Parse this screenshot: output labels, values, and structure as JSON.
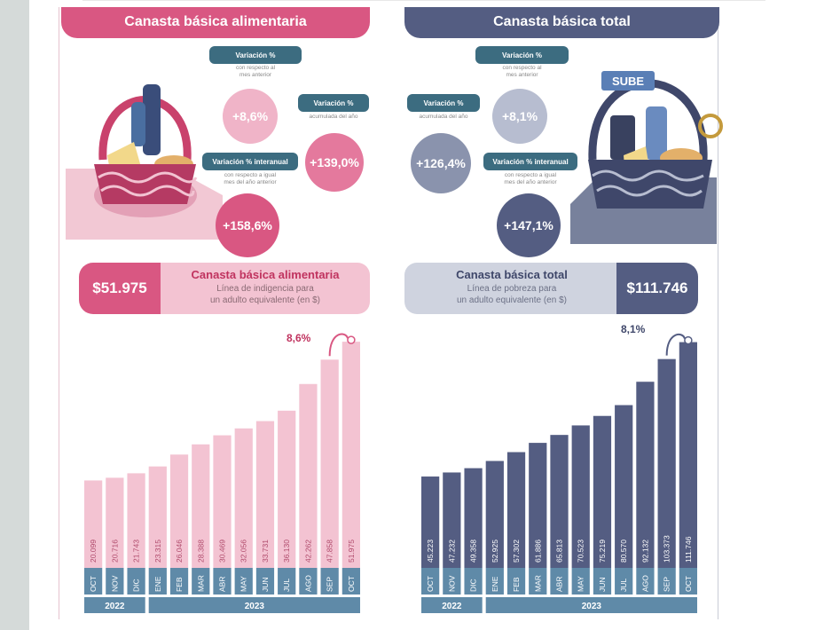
{
  "colors": {
    "pink_dark": "#d95782",
    "pink_mid": "#e47c9e",
    "pink_light": "#f3c3d2",
    "navy_dark": "#545d82",
    "navy_mid": "#68728f",
    "navy_light": "#cfd3df",
    "teal": "#3c6c80",
    "axis_blue": "#5f8aa8"
  },
  "left": {
    "header": "Canasta básica alimentaria",
    "var_mensual_title": "Variación %",
    "var_mensual_sub": "con respecto al\nmes anterior",
    "var_mensual_value": "+8,6%",
    "var_acum_title": "Variación %",
    "var_acum_sub": "acumulada del año",
    "var_acum_value": "+139,0%",
    "var_inter_title": "Variación % interanual",
    "var_inter_sub": "con respecto a igual\nmes del año anterior",
    "var_inter_value": "+158,6%",
    "price": "$51.975",
    "card_title": "Canasta básica alimentaria",
    "card_line1": "Línea de indigencia para",
    "card_line2": "un adulto equivalente (en $)",
    "last_change": "8,6%"
  },
  "right": {
    "header": "Canasta básica total",
    "var_mensual_title": "Variación %",
    "var_mensual_sub": "con respecto al\nmes anterior",
    "var_mensual_value": "+8,1%",
    "var_acum_title": "Variación %",
    "var_acum_sub": "acumulada del año",
    "var_acum_value": "+126,4%",
    "var_inter_title": "Variación % interanual",
    "var_inter_sub": "con respecto a igual\nmes del año anterior",
    "var_inter_value": "+147,1%",
    "price": "$111.746",
    "card_title": "Canasta básica total",
    "card_line1": "Línea de pobreza para",
    "card_line2": "un adulto equivalente (en $)",
    "last_change": "8,1%",
    "sube_label": "SUBE"
  },
  "chart_data": [
    {
      "type": "bar",
      "categories": [
        "OCT",
        "NOV",
        "DIC",
        "ENE",
        "FEB",
        "MAR",
        "ABR",
        "MAY",
        "JUN",
        "JUL",
        "AGO",
        "SEP",
        "OCT"
      ],
      "labels": [
        "20.099",
        "20.716",
        "21.743",
        "23.315",
        "26.046",
        "28.388",
        "30.469",
        "32.056",
        "33.731",
        "36.130",
        "42.262",
        "47.858",
        "51.975"
      ],
      "values": [
        20099,
        20716,
        21743,
        23315,
        26046,
        28388,
        30469,
        32056,
        33731,
        36130,
        42262,
        47858,
        51975
      ],
      "years": [
        {
          "label": "2022",
          "count": 3
        },
        {
          "label": "2023",
          "count": 10
        }
      ],
      "title": "Canasta básica alimentaria",
      "ylim": [
        0,
        52000
      ]
    },
    {
      "type": "bar",
      "categories": [
        "OCT",
        "NOV",
        "DIC",
        "ENE",
        "FEB",
        "MAR",
        "ABR",
        "MAY",
        "JUN",
        "JUL",
        "AGO",
        "SEP",
        "OCT"
      ],
      "labels": [
        "45.223",
        "47.232",
        "49.358",
        "52.925",
        "57.302",
        "61.886",
        "65.813",
        "70.523",
        "75.219",
        "80.570",
        "92.132",
        "103.373",
        "111.746"
      ],
      "values": [
        45223,
        47232,
        49358,
        52925,
        57302,
        61886,
        65813,
        70523,
        75219,
        80570,
        92132,
        103373,
        111746
      ],
      "years": [
        {
          "label": "2022",
          "count": 3
        },
        {
          "label": "2023",
          "count": 10
        }
      ],
      "title": "Canasta básica total",
      "ylim": [
        0,
        112000
      ]
    }
  ]
}
